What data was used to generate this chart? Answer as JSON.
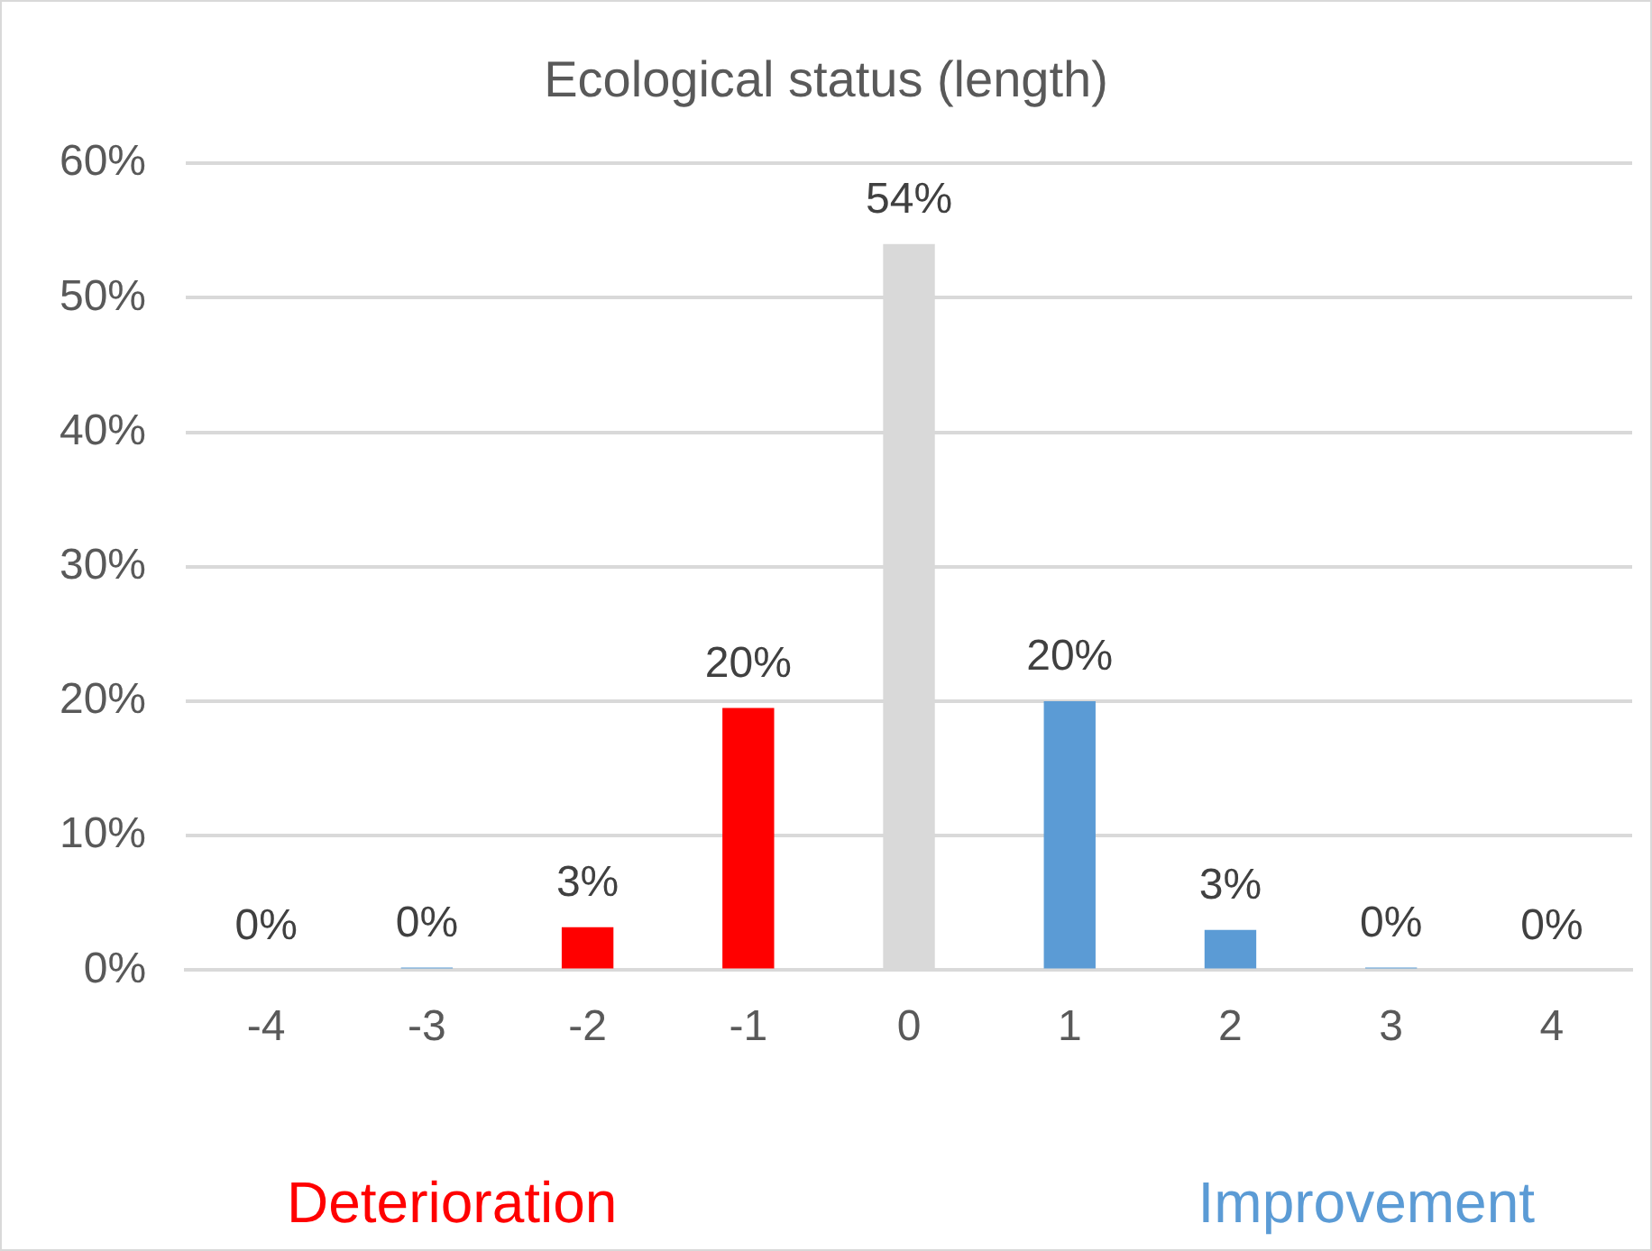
{
  "chart_data": {
    "type": "bar",
    "title": "Ecological status (length)",
    "categories": [
      "-4",
      "-3",
      "-2",
      "-1",
      "0",
      "1",
      "2",
      "3",
      "4"
    ],
    "values": [
      0,
      0.2,
      3.2,
      19.5,
      54,
      20,
      3,
      0.2,
      0
    ],
    "value_labels": [
      "0%",
      "0%",
      "3%",
      "20%",
      "54%",
      "20%",
      "3%",
      "0%",
      "0%"
    ],
    "colors": [
      "#ff0000",
      "#5b9bd5",
      "#ff0000",
      "#ff0000",
      "#d9d9d9",
      "#5b9bd5",
      "#5b9bd5",
      "#5b9bd5",
      "#5b9bd5"
    ],
    "ylim": [
      0,
      60
    ],
    "yticks": [
      {
        "value": 0,
        "label": "0%"
      },
      {
        "value": 10,
        "label": "10%"
      },
      {
        "value": 20,
        "label": "20%"
      },
      {
        "value": 30,
        "label": "30%"
      },
      {
        "value": 40,
        "label": "40%"
      },
      {
        "value": 50,
        "label": "50%"
      },
      {
        "value": 60,
        "label": "60%"
      }
    ],
    "grid": "y",
    "annotations": [
      "Deterioration",
      "Improvement"
    ]
  }
}
